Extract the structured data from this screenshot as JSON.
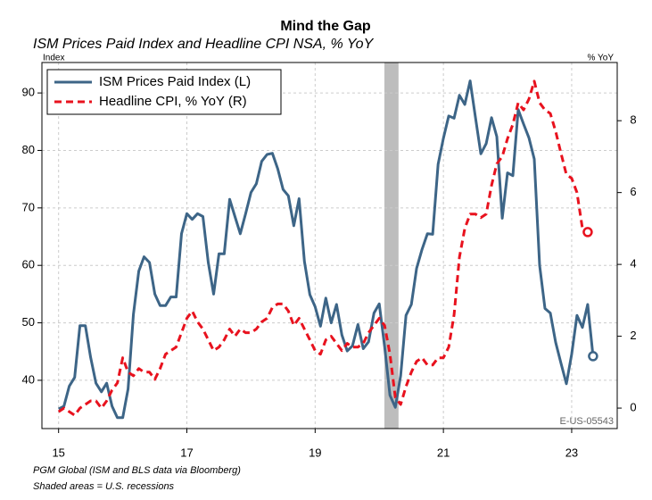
{
  "chart_data": {
    "type": "line",
    "title": "Mind the Gap",
    "subtitle": "ISM Prices Paid Index and Headline CPI NSA, % YoY",
    "y_label": "Index",
    "y2_label": "% YoY",
    "watermark": "E-US-05543",
    "footnotes": [
      "PGM Global (ISM and BLS data via Bloomberg)",
      "Shaded areas = U.S. recessions"
    ],
    "recession": [
      20.08,
      20.3
    ],
    "xlim": [
      14.74,
      23.71
    ],
    "xticks": [
      15,
      17,
      19,
      21,
      23
    ],
    "ylim": [
      31.6,
      95.3
    ],
    "yticks": [
      40,
      50,
      60,
      70,
      80,
      90
    ],
    "y2lim": [
      -0.57,
      9.62
    ],
    "y2ticks": [
      0,
      2,
      4,
      6,
      8
    ],
    "grid": true,
    "legend": "top-left",
    "x": [
      15,
      15.083,
      15.167,
      15.25,
      15.333,
      15.417,
      15.5,
      15.583,
      15.667,
      15.75,
      15.833,
      15.917,
      16,
      16.083,
      16.167,
      16.25,
      16.333,
      16.417,
      16.5,
      16.583,
      16.667,
      16.75,
      16.833,
      16.917,
      17,
      17.083,
      17.167,
      17.25,
      17.333,
      17.417,
      17.5,
      17.583,
      17.667,
      17.75,
      17.833,
      17.917,
      18,
      18.083,
      18.167,
      18.25,
      18.333,
      18.417,
      18.5,
      18.583,
      18.667,
      18.75,
      18.833,
      18.917,
      19,
      19.083,
      19.167,
      19.25,
      19.333,
      19.417,
      19.5,
      19.583,
      19.667,
      19.75,
      19.833,
      19.917,
      20,
      20.083,
      20.167,
      20.25,
      20.333,
      20.417,
      20.5,
      20.583,
      20.667,
      20.75,
      20.833,
      20.917,
      21,
      21.083,
      21.167,
      21.25,
      21.333,
      21.417,
      21.5,
      21.583,
      21.667,
      21.75,
      21.833,
      21.917,
      22,
      22.083,
      22.167,
      22.25,
      22.333,
      22.417,
      22.5,
      22.583,
      22.667,
      22.75,
      22.833,
      22.917,
      23,
      23.083,
      23.167,
      23.25,
      23.333
    ],
    "series": [
      {
        "name": "ISM Prices Paid Index (L)",
        "color": "#3d6587",
        "dash": false,
        "axis": "y",
        "values": [
          35,
          35.5,
          39,
          40.5,
          49.5,
          49.5,
          44,
          39.5,
          38,
          39.5,
          35.5,
          33.5,
          33.5,
          38.5,
          51.5,
          59,
          61.5,
          60.5,
          55,
          53,
          53,
          54.5,
          54.5,
          65.5,
          69,
          68,
          69,
          68.5,
          60.5,
          55,
          62,
          62,
          71.5,
          68.5,
          65.5,
          69,
          72.7,
          74.2,
          78.1,
          79.3,
          79.5,
          76.8,
          73.2,
          72.1,
          66.9,
          71.6,
          60.7,
          54.9,
          52.8,
          49.4,
          54.3,
          50,
          53.2,
          47.9,
          45.1,
          46,
          49.7,
          45.5,
          46.7,
          51.7,
          53.3,
          45.9,
          37.4,
          35.3,
          40.8,
          51.3,
          53.2,
          59.5,
          62.8,
          65.5,
          65.4,
          77.6,
          82.1,
          86,
          85.6,
          89.6,
          88,
          92.1,
          85.7,
          79.4,
          81.2,
          85.7,
          82.4,
          68.2,
          76.1,
          75.6,
          87.1,
          84.6,
          82.2,
          78.5,
          60,
          52.5,
          51.7,
          46.6,
          43,
          39.4,
          44.5,
          51.3,
          49.2,
          53.2,
          44.2
        ]
      },
      {
        "name": "Headline CPI, % YoY (R)",
        "color": "#e8121e",
        "dash": true,
        "axis": "y2",
        "values": [
          -0.1,
          0,
          -0.1,
          -0.2,
          0,
          0.1,
          0.2,
          0.2,
          0,
          0.2,
          0.5,
          0.7,
          1.4,
          1,
          0.9,
          1.1,
          1,
          1,
          0.8,
          1.1,
          1.5,
          1.6,
          1.7,
          2.1,
          2.5,
          2.7,
          2.4,
          2.2,
          1.9,
          1.6,
          1.7,
          1.9,
          2.2,
          2,
          2.2,
          2.1,
          2.1,
          2.2,
          2.4,
          2.5,
          2.8,
          2.9,
          2.9,
          2.7,
          2.3,
          2.5,
          2.2,
          1.9,
          1.6,
          1.5,
          1.9,
          2,
          1.8,
          1.6,
          1.8,
          1.7,
          1.7,
          1.8,
          2.1,
          2.3,
          2.5,
          2.3,
          1.5,
          0.3,
          0.1,
          0.6,
          1,
          1.3,
          1.4,
          1.2,
          1.2,
          1.4,
          1.4,
          1.7,
          2.6,
          4.2,
          5,
          5.4,
          5.4,
          5.3,
          5.4,
          6.2,
          6.8,
          7,
          7.5,
          7.9,
          8.5,
          8.3,
          8.6,
          9.1,
          8.5,
          8.3,
          8.2,
          7.7,
          7.1,
          6.5,
          6.4,
          6,
          5,
          4.9,
          null
        ]
      }
    ]
  }
}
